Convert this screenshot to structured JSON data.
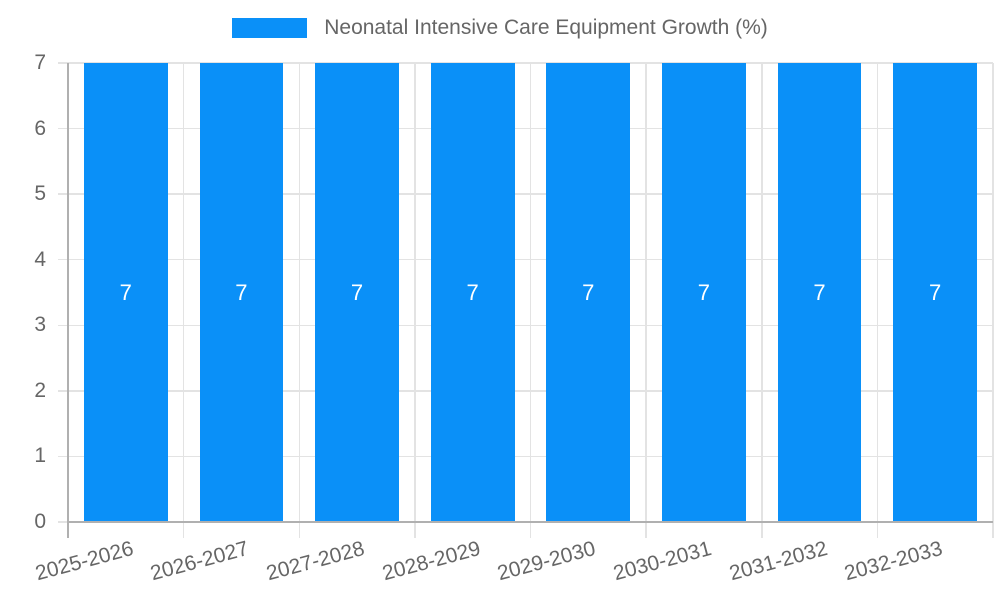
{
  "legend": {
    "label": "Neonatal Intensive Care Equipment Growth (%)"
  },
  "chart_data": {
    "type": "bar",
    "title": "Neonatal Intensive Care Equipment Growth (%)",
    "categories": [
      "2025-2026",
      "2026-2027",
      "2027-2028",
      "2028-2029",
      "2029-2030",
      "2030-2031",
      "2031-2032",
      "2032-2033"
    ],
    "values": [
      7,
      7,
      7,
      7,
      7,
      7,
      7,
      7
    ],
    "bar_labels": [
      "7",
      "7",
      "7",
      "7",
      "7",
      "7",
      "7",
      "7"
    ],
    "series": [
      {
        "name": "Neonatal Intensive Care Equipment Growth (%)",
        "values": [
          7,
          7,
          7,
          7,
          7,
          7,
          7,
          7
        ]
      }
    ],
    "xlabel": "",
    "ylabel": "",
    "ylim": [
      0,
      7
    ],
    "y_ticks": [
      "0",
      "1",
      "2",
      "3",
      "4",
      "5",
      "6",
      "7"
    ],
    "grid": true,
    "legend_position": "top",
    "x_label_rotation_deg": -15,
    "colors": {
      "bar": "#0a90f8",
      "bar_label": "#ffffff",
      "axis_text": "#666666",
      "gridline": "#e3e3e3",
      "axis_line": "#b0b0b0"
    }
  }
}
